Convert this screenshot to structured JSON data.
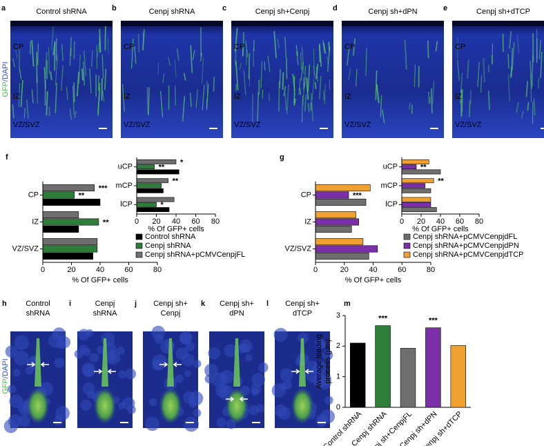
{
  "stain": [
    "GFP",
    "/DAPI"
  ],
  "image_panels": [
    {
      "label": "a",
      "title": "Control shRNA",
      "regions": [
        "CP",
        "IZ",
        "VZ/SVZ"
      ]
    },
    {
      "label": "b",
      "title": "Cenpj shRNA",
      "regions": [
        "CP",
        "IZ",
        "VZ/SVZ"
      ]
    },
    {
      "label": "c",
      "title": "Cenpj sh+Cenpj",
      "regions": [
        "CP",
        "IZ",
        "VZ/SVZ"
      ]
    },
    {
      "label": "d",
      "title": "Cenpj sh+dPN",
      "regions": [
        "CP",
        "IZ",
        "VZ/SVZ"
      ]
    },
    {
      "label": "e",
      "title": "Cenpj sh+dTCP",
      "regions": [
        "CP",
        "IZ",
        "VZ/SVZ"
      ]
    }
  ],
  "cell_panels": [
    {
      "label": "h",
      "title": [
        "Control",
        "shRNA"
      ]
    },
    {
      "label": "i",
      "title": [
        "Cenpj",
        "shRNA"
      ]
    },
    {
      "label": "j",
      "title": [
        "Cenpj sh+",
        "Cenpj"
      ]
    },
    {
      "label": "k",
      "title": [
        "Cenpj sh+",
        "dPN"
      ]
    },
    {
      "label": "l",
      "title": [
        "Cenpj sh+",
        "dTCP"
      ]
    }
  ],
  "chart_data": [
    {
      "type": "hbar",
      "panel_label": "f",
      "xlabel": "% Of GFP+ cells",
      "categories": [
        "CP",
        "IZ",
        "VZ/SVZ"
      ],
      "series": [
        {
          "name": "Control shRNA",
          "color": "#000000",
          "values": [
            40,
            25,
            35
          ]
        },
        {
          "name": "Cenpj shRNA",
          "color": "#2e7d3a",
          "values": [
            22,
            39,
            38
          ]
        },
        {
          "name": "Cenpj shRNA+pCMVCenpjFL",
          "color": "#6e6e6e",
          "values": [
            36,
            25,
            38
          ]
        }
      ],
      "xlim": [
        0,
        80
      ],
      "xticks": [
        0,
        20,
        40,
        60,
        80
      ],
      "annotations": [
        {
          "text": "***",
          "category": "CP",
          "series": "Cenpj shRNA+pCMVCenpjFL"
        },
        {
          "text": "**",
          "category": "CP",
          "series": "Cenpj shRNA"
        },
        {
          "text": "**",
          "category": "IZ",
          "series": "Cenpj shRNA"
        }
      ]
    },
    {
      "type": "hbar",
      "inset": true,
      "xlabel": "% Of GFP+ cells",
      "categories": [
        "uCP",
        "mCP",
        "lCP"
      ],
      "series": [
        {
          "name": "Control shRNA",
          "color": "#000000",
          "values": [
            43,
            27,
            33
          ]
        },
        {
          "name": "Cenpj shRNA",
          "color": "#2e7d3a",
          "values": [
            18,
            25,
            20
          ]
        },
        {
          "name": "Cenpj shRNA+pCMVCenpjFL",
          "color": "#6e6e6e",
          "values": [
            40,
            32,
            38
          ]
        }
      ],
      "xlim": [
        0,
        80
      ],
      "xticks": [
        0,
        20,
        40,
        60,
        80
      ],
      "annotations": [
        {
          "text": "*",
          "category": "uCP",
          "series": "Cenpj shRNA+pCMVCenpjFL"
        },
        {
          "text": "**",
          "category": "uCP",
          "series": "Cenpj shRNA"
        },
        {
          "text": "**",
          "category": "mCP",
          "series": "Cenpj shRNA+pCMVCenpjFL"
        },
        {
          "text": "*",
          "category": "lCP",
          "series": "Cenpj shRNA"
        }
      ]
    },
    {
      "type": "hbar",
      "panel_label": "g",
      "xlabel": "% Of GFP+ cells",
      "categories": [
        "CP",
        "IZ",
        "VZ/SVZ"
      ],
      "series": [
        {
          "name": "Cenpj shRNA+pCMVCenpjdFL",
          "color": "#6e6e6e",
          "values": [
            35,
            25,
            37
          ]
        },
        {
          "name": "Cenpj shRNA+pCMVCenpjdPN",
          "color": "#7b2fa8",
          "values": [
            23,
            30,
            43
          ]
        },
        {
          "name": "Cenpj shRNA+pCMVCenpjdTCP",
          "color": "#f0a030",
          "values": [
            38,
            28,
            33
          ]
        }
      ],
      "xlim": [
        0,
        80
      ],
      "xticks": [
        0,
        20,
        40,
        60,
        80
      ],
      "annotations": [
        {
          "text": "***",
          "category": "CP",
          "series": "Cenpj shRNA+pCMVCenpjdPN"
        }
      ]
    },
    {
      "type": "hbar",
      "inset": true,
      "xlabel": "% Of GFP+ cells",
      "categories": [
        "uCP",
        "mCP",
        "lCP"
      ],
      "series": [
        {
          "name": "Cenpj shRNA+pCMVCenpjdFL",
          "color": "#6e6e6e",
          "values": [
            40,
            30,
            36
          ]
        },
        {
          "name": "Cenpj shRNA+pCMVCenpjdPN",
          "color": "#7b2fa8",
          "values": [
            15,
            24,
            30
          ]
        },
        {
          "name": "Cenpj shRNA+pCMVCenpjdTCP",
          "color": "#f0a030",
          "values": [
            28,
            33,
            30
          ]
        }
      ],
      "xlim": [
        0,
        80
      ],
      "xticks": [
        0,
        20,
        40,
        60,
        80
      ],
      "annotations": [
        {
          "text": "**",
          "category": "uCP",
          "series": "Cenpj shRNA+pCMVCenpjdPN"
        },
        {
          "text": "**",
          "category": "mCP",
          "series": "Cenpj shRNA+pCMVCenpjdTCP"
        }
      ]
    },
    {
      "type": "bar",
      "panel_label": "m",
      "ylabel": [
        "Average leading",
        "process (µm)"
      ],
      "categories": [
        "Control shRNA",
        "Cenpj shRNA",
        "Cenpj sh+CenpjFL",
        "Cenpj sh+dPN",
        "Cenpj sh+dTCP"
      ],
      "values": [
        2.1,
        2.67,
        1.93,
        2.6,
        2.02
      ],
      "colors": [
        "#000000",
        "#2e7d3a",
        "#6e6e6e",
        "#7b2fa8",
        "#f0a030"
      ],
      "ylim": [
        0,
        3
      ],
      "yticks": [
        0,
        1,
        2,
        3
      ],
      "annotations": [
        {
          "text": "***",
          "category": "Cenpj shRNA"
        },
        {
          "text": "***",
          "category": "Cenpj sh+dPN"
        }
      ]
    }
  ]
}
